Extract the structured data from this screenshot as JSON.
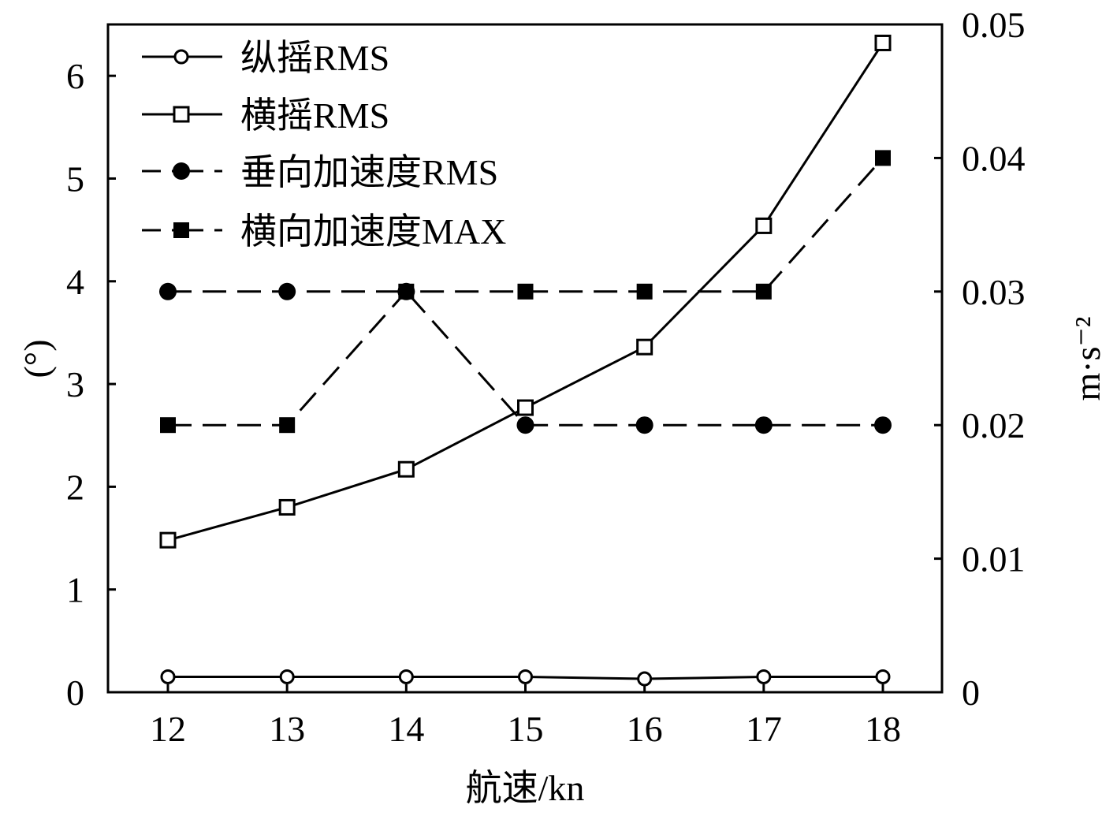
{
  "chart_data": {
    "type": "line",
    "xlabel": "航速/kn",
    "ylabel_left": "(°)",
    "ylabel_right": "m·s⁻²",
    "x": [
      12,
      13,
      14,
      15,
      16,
      17,
      18
    ],
    "x_ticks": [
      "12",
      "13",
      "14",
      "15",
      "16",
      "17",
      "18"
    ],
    "ylim_left": [
      0,
      6.5
    ],
    "y_ticks_left": [
      "0",
      "1",
      "2",
      "3",
      "4",
      "5",
      "6"
    ],
    "ylim_right": [
      0,
      0.05
    ],
    "y_ticks_right": [
      "0",
      "0.01",
      "0.02",
      "0.03",
      "0.04",
      "0.05"
    ],
    "grid": false,
    "legend_position": "top-left",
    "series": [
      {
        "name": "纵摇RMS",
        "axis": "left",
        "line": "solid",
        "marker": "open-circle",
        "color": "#000000",
        "values": [
          0.15,
          0.15,
          0.15,
          0.15,
          0.13,
          0.15,
          0.15
        ]
      },
      {
        "name": "横摇RMS",
        "axis": "left",
        "line": "solid",
        "marker": "open-square",
        "color": "#000000",
        "values": [
          1.48,
          1.8,
          2.17,
          2.77,
          3.36,
          4.54,
          6.32
        ]
      },
      {
        "name": "垂向加速度RMS",
        "axis": "right",
        "line": "dashed",
        "marker": "filled-circle",
        "color": "#000000",
        "values": [
          0.03,
          0.03,
          0.03,
          0.02,
          0.02,
          0.02,
          0.02
        ]
      },
      {
        "name": "横向加速度MAX",
        "axis": "right",
        "line": "dashed",
        "marker": "filled-square",
        "color": "#000000",
        "values": [
          0.02,
          0.02,
          0.03,
          0.03,
          0.03,
          0.03,
          0.04
        ]
      }
    ]
  }
}
